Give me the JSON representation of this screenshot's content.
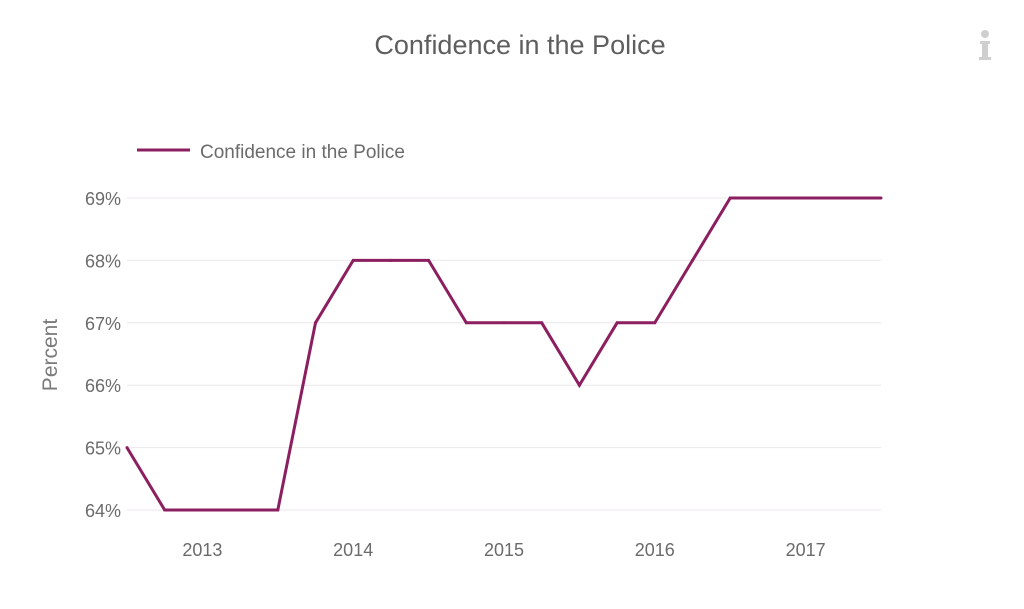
{
  "chart_data": {
    "type": "line",
    "title": "Confidence in the Police",
    "xlabel": "",
    "ylabel": "Percent",
    "legend_placement": "top-left",
    "grid": true,
    "colors": {
      "series": "#8b1f5f",
      "grid": "#ece7ec",
      "text": "#6b6b6b",
      "title": "#5e5e5e"
    },
    "x_ticks": [
      "2013",
      "2014",
      "2015",
      "2016",
      "2017"
    ],
    "y_ticks": [
      "64%",
      "65%",
      "66%",
      "67%",
      "68%",
      "69%"
    ],
    "y_tick_values": [
      64,
      65,
      66,
      67,
      68,
      69
    ],
    "ylim": [
      64,
      69
    ],
    "xlim": [
      2012.5,
      2017.5
    ],
    "x_tick_values": [
      2013,
      2014,
      2015,
      2016,
      2017
    ],
    "series": [
      {
        "name": "Confidence in the Police",
        "x": [
          2012.5,
          2012.75,
          2013.0,
          2013.25,
          2013.5,
          2013.75,
          2014.0,
          2014.25,
          2014.5,
          2014.75,
          2015.0,
          2015.25,
          2015.5,
          2015.75,
          2016.0,
          2016.25,
          2016.5,
          2016.75,
          2017.0,
          2017.25,
          2017.5
        ],
        "values": [
          65,
          64,
          64,
          64,
          64,
          67,
          68,
          68,
          68,
          67,
          67,
          67,
          66,
          67,
          67,
          68,
          69,
          69,
          69,
          69,
          69
        ]
      }
    ]
  },
  "icons": {
    "info": "info-icon"
  }
}
